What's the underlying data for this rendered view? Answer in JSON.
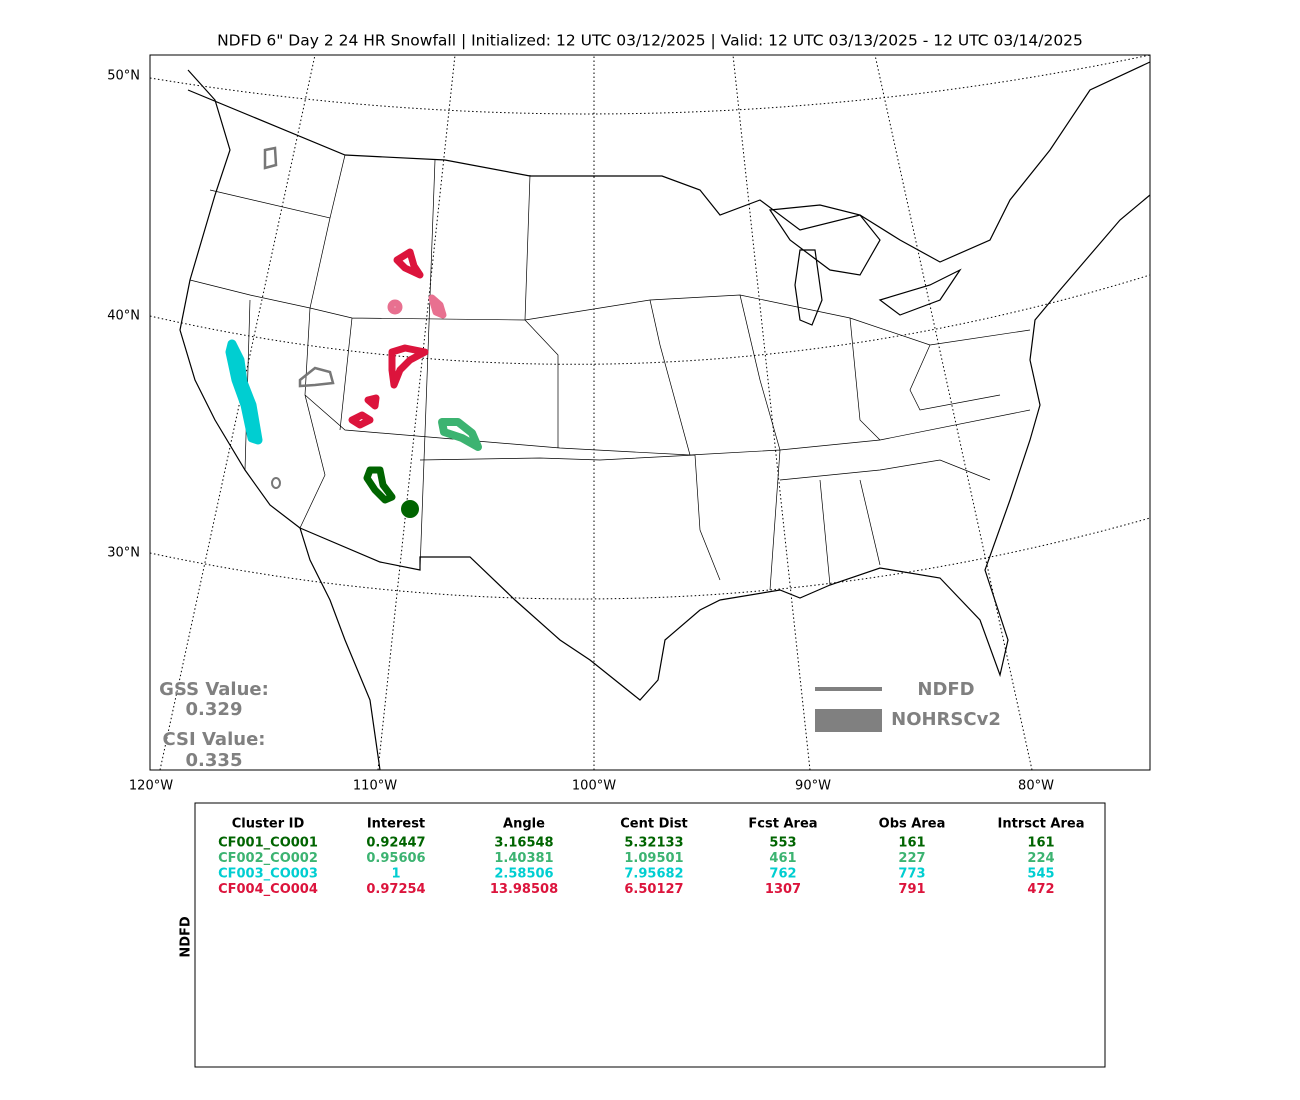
{
  "title": "NDFD 6\" Day 2 24 HR Snowfall | Initialized: 12 UTC 03/12/2025 | Valid: 12 UTC 03/13/2025 - 12 UTC 03/14/2025",
  "map": {
    "lat_labels": [
      "50°N",
      "40°N",
      "30°N"
    ],
    "lon_labels": [
      "120°W",
      "110°W",
      "100°W",
      "90°W",
      "80°W"
    ],
    "gss_label": "GSS Value:",
    "gss_value": "0.329",
    "csi_label": "CSI Value:",
    "csi_value": "0.335",
    "legend": [
      "NDFD",
      "NOHRSCv2"
    ]
  },
  "table": {
    "side_label": "NDFD",
    "header": [
      "Cluster ID",
      "Interest",
      "Angle",
      "Cent Dist",
      "Fcst Area",
      "Obs Area",
      "Intrsct Area"
    ],
    "rows": [
      [
        "CF001_CO001",
        "0.92447",
        "3.16548",
        "5.32133",
        "553",
        "161",
        "161"
      ],
      [
        "CF002_CO002",
        "0.95606",
        "1.40381",
        "1.09501",
        "461",
        "227",
        "224"
      ],
      [
        "CF003_CO003",
        "1",
        "2.58506",
        "7.95682",
        "762",
        "773",
        "545"
      ],
      [
        "CF004_CO004",
        "0.97254",
        "13.98508",
        "6.50127",
        "1307",
        "791",
        "472"
      ]
    ]
  }
}
